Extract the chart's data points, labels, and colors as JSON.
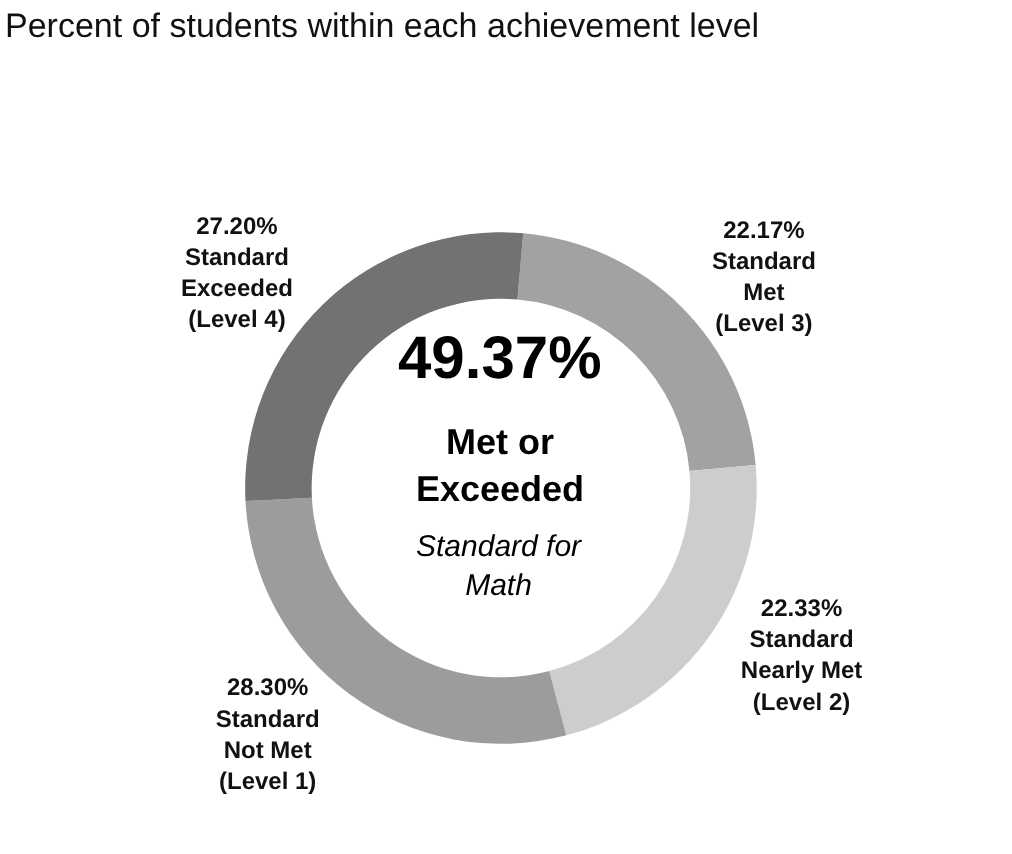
{
  "chart_data": {
    "type": "donut",
    "title": "Percent of students within each achievement level",
    "categories": [
      "Standard\nMet\n(Level 3)",
      "Standard\nNearly Met\n(Level 2)",
      "Standard\nNot Met\n(Level 1)",
      "Standard\nExceeded\n(Level 4)"
    ],
    "values": [
      22.17,
      22.33,
      28.3,
      27.2
    ],
    "value_labels": [
      "22.17%",
      "22.33%",
      "28.30%",
      "27.20%"
    ],
    "colors": [
      "#a2a2a2",
      "#cdcdcd",
      "#9c9c9c",
      "#727272"
    ],
    "annotations": [
      "49.37%",
      "Met or\nExceeded",
      "Standard for\nMath"
    ],
    "legend": false
  }
}
